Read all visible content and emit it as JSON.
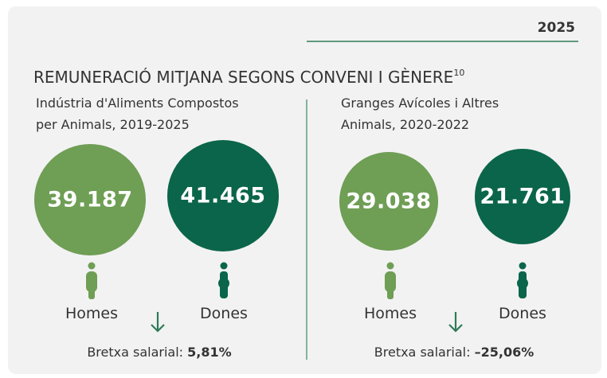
{
  "header": {
    "year": "2025"
  },
  "title": "REMUNERACIÓ MITJANA SEGONS CONVENI I GÈNERE",
  "title_note": "10",
  "panels": [
    {
      "subtitle_lines": [
        "Indústria d'Aliments Compostos",
        "per Animals, 2019-2025"
      ],
      "men": {
        "value": "39.187",
        "label": "Homes"
      },
      "women": {
        "value": "41.465",
        "label": "Dones"
      },
      "gap": {
        "label": "Bretxa salarial:",
        "value": "5,81%"
      }
    },
    {
      "subtitle_lines": [
        "Granges Avícoles i Altres",
        "Animals, 2020-2022"
      ],
      "men": {
        "value": "29.038",
        "label": "Homes"
      },
      "women": {
        "value": "21.761",
        "label": "Dones"
      },
      "gap": {
        "label": "Bretxa salarial:",
        "value": "–25,06%"
      }
    }
  ]
}
